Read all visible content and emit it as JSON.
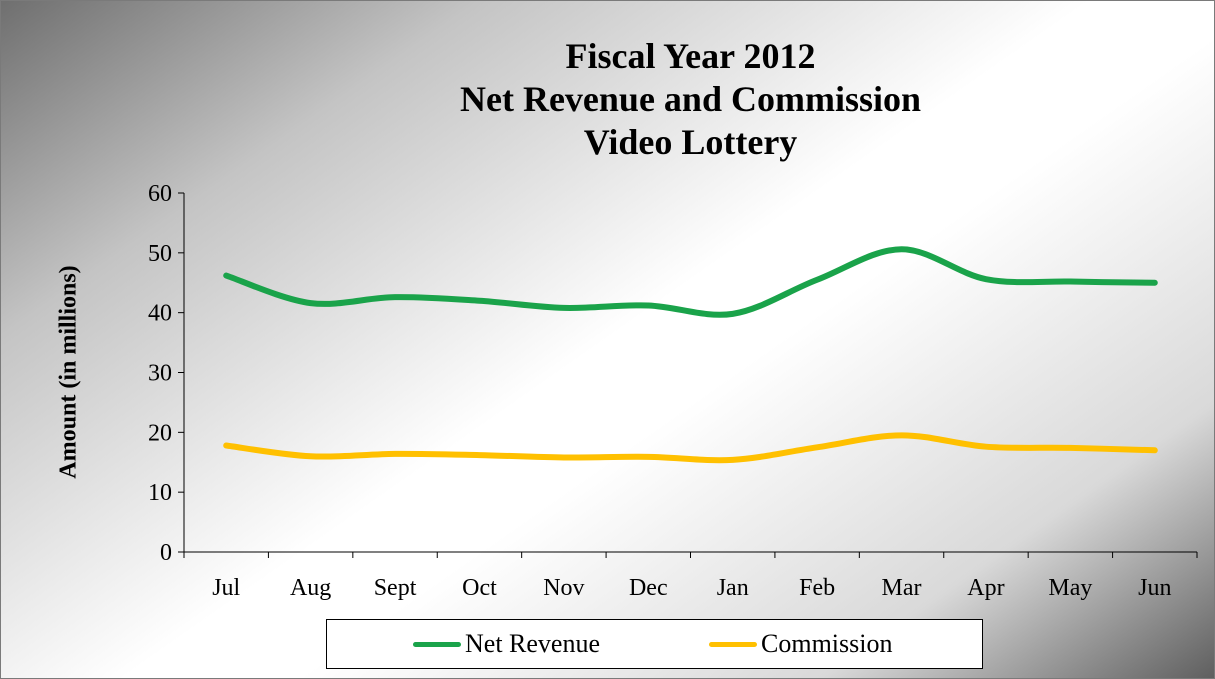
{
  "chart_data": {
    "type": "line",
    "title": [
      "Fiscal Year 2012",
      "Net Revenue and Commission",
      "Video Lottery"
    ],
    "xlabel": "",
    "ylabel": "Amount (in millions)",
    "categories": [
      "Jul",
      "Aug",
      "Sept",
      "Oct",
      "Nov",
      "Dec",
      "Jan",
      "Feb",
      "Mar",
      "Apr",
      "May",
      "Jun"
    ],
    "ylim": [
      0,
      60
    ],
    "yticks": [
      0,
      10,
      20,
      30,
      40,
      50,
      60
    ],
    "grid": false,
    "legend_position": "bottom",
    "series": [
      {
        "name": "Net Revenue",
        "color": "#1aa34a",
        "values": [
          46.2,
          41.6,
          42.6,
          42.0,
          40.8,
          41.2,
          39.8,
          45.5,
          50.6,
          45.6,
          45.2,
          45.0
        ]
      },
      {
        "name": "Commission",
        "color": "#ffc000",
        "values": [
          17.8,
          16.0,
          16.4,
          16.2,
          15.8,
          15.9,
          15.4,
          17.5,
          19.5,
          17.6,
          17.4,
          17.0
        ]
      }
    ]
  }
}
